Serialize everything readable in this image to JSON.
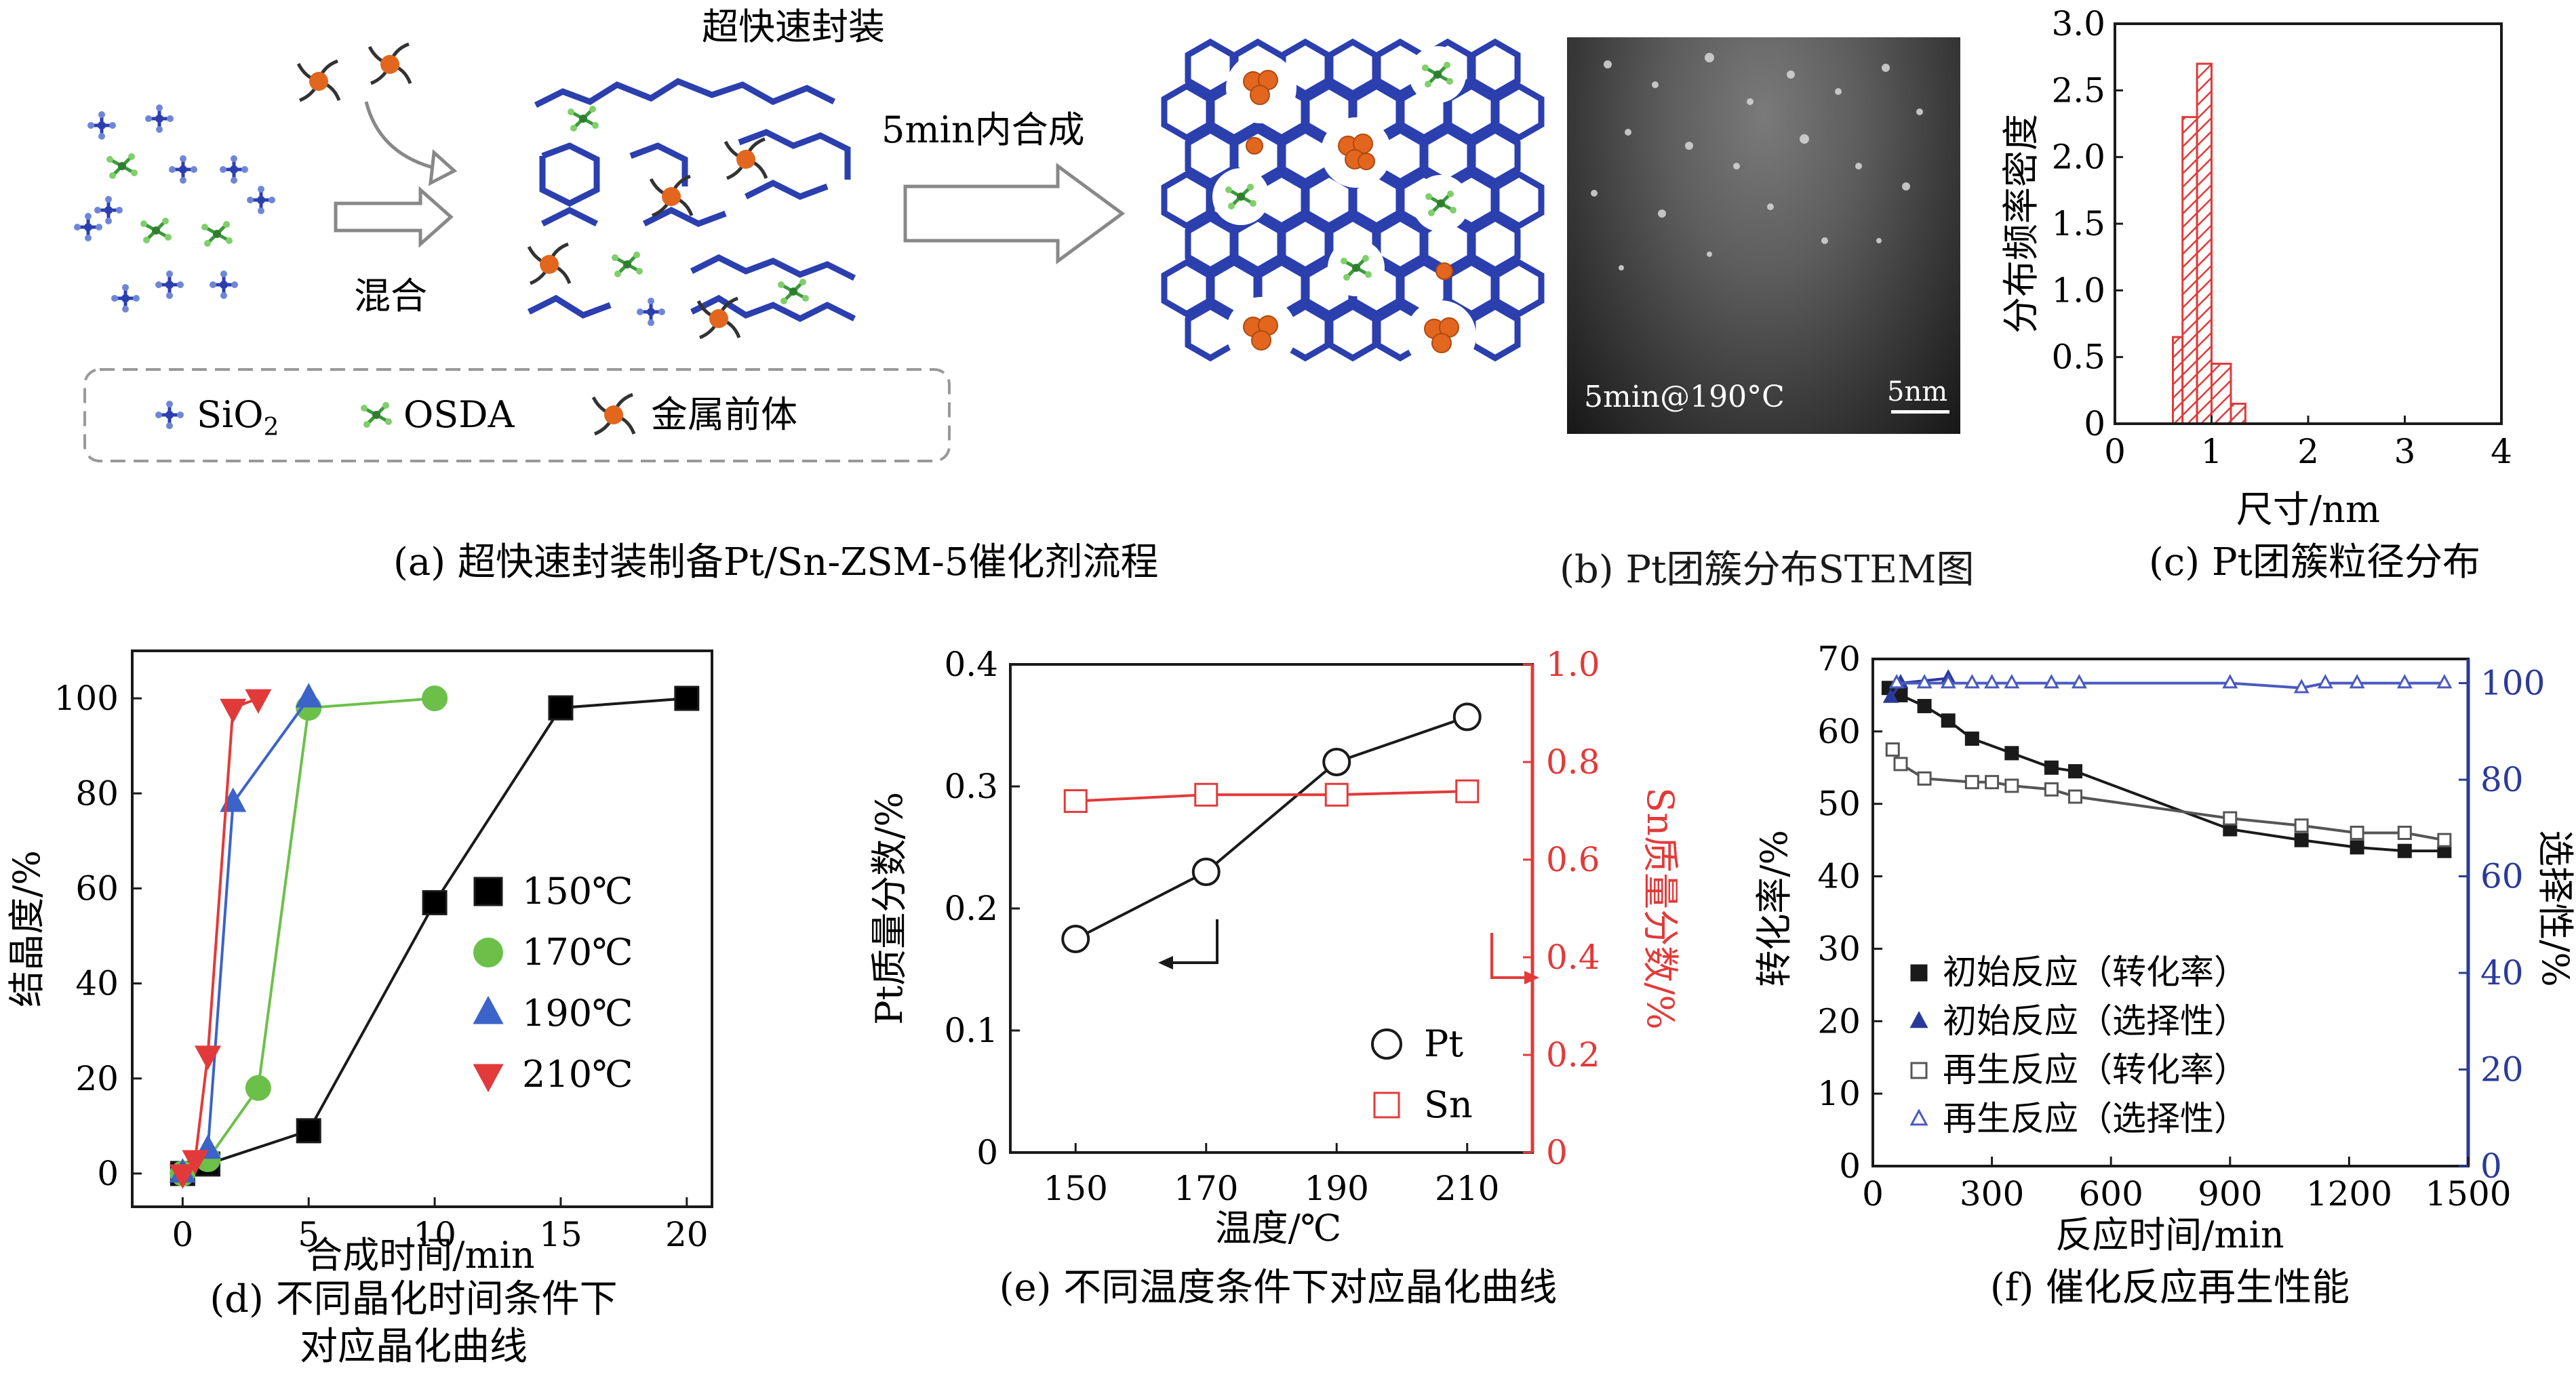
{
  "panel_a": {
    "top_title": "超快速封装",
    "mix_label": "混合",
    "synth_label": "5min内合成",
    "legend": {
      "sio2": "SiO",
      "sio2_sub": "2",
      "osda": "OSDA",
      "metal": "金属前体"
    },
    "caption": "(a) 超快速封装制备Pt/Sn-ZSM-5催化剂流程",
    "colors": {
      "framework": "#2b3fae",
      "osda": "#3a9a3a",
      "metal": "#e2661e"
    }
  },
  "panel_b": {
    "condition": "5min@190°C",
    "scale": "5nm",
    "caption": "(b) Pt团簇分布STEM图"
  },
  "chart_data": [
    {
      "id": "c",
      "type": "bar",
      "caption": "(c) Pt团簇粒径分布",
      "xlabel": "尺寸/nm",
      "ylabel": "分布频率密度",
      "xlim": [
        0,
        4
      ],
      "ylim": [
        0,
        3.0
      ],
      "xticks": [
        "0",
        "1",
        "2",
        "3",
        "4"
      ],
      "yticks": [
        "0",
        "0.5",
        "1.0",
        "1.5",
        "2.0",
        "2.5",
        "3.0"
      ],
      "bars": [
        {
          "x0": 0.6,
          "x1": 0.7,
          "value": 0.65
        },
        {
          "x0": 0.7,
          "x1": 0.85,
          "value": 2.3
        },
        {
          "x0": 0.85,
          "x1": 1.0,
          "value": 2.7
        },
        {
          "x0": 1.0,
          "x1": 1.2,
          "value": 0.45
        },
        {
          "x0": 1.2,
          "x1": 1.35,
          "value": 0.15
        }
      ],
      "color": "#e03a3a"
    },
    {
      "id": "d",
      "type": "line",
      "caption_line1": "(d) 不同晶化时间条件下",
      "caption_line2": "对应晶化曲线",
      "xlabel": "合成时间/min",
      "ylabel": "结晶度/%",
      "xlim": [
        -2,
        21
      ],
      "ylim": [
        -7,
        110
      ],
      "xticks": [
        "0",
        "5",
        "10",
        "15",
        "20"
      ],
      "yticks": [
        "0",
        "20",
        "40",
        "60",
        "80",
        "100"
      ],
      "series": [
        {
          "name": "150℃",
          "marker": "square",
          "color": "#1a1a1a",
          "fill": "#000000",
          "x": [
            0,
            1,
            5,
            10,
            15,
            20
          ],
          "y": [
            0,
            2,
            9,
            57,
            98,
            100
          ]
        },
        {
          "name": "170℃",
          "marker": "circle",
          "color": "#6cc04a",
          "fill": "#6cc04a",
          "x": [
            0,
            1,
            3,
            5,
            10
          ],
          "y": [
            0,
            3,
            18,
            98,
            100
          ]
        },
        {
          "name": "190℃",
          "marker": "triangle-up",
          "color": "#3b63c9",
          "fill": "#3b63c9",
          "x": [
            0,
            1,
            2,
            5
          ],
          "y": [
            0,
            5,
            78,
            100
          ]
        },
        {
          "name": "210℃",
          "marker": "triangle-down",
          "color": "#e23a3a",
          "fill": "#e23a3a",
          "x": [
            0,
            0.5,
            1,
            2,
            3
          ],
          "y": [
            0,
            3,
            25,
            98,
            100
          ]
        }
      ]
    },
    {
      "id": "e",
      "type": "line",
      "caption": "(e) 不同温度条件下对应晶化曲线",
      "xlabel": "温度/℃",
      "ylabel_left": "Pt质量分数/%",
      "ylabel_right": "Sn质量分数/%",
      "xlim": [
        140,
        220
      ],
      "ylim_left": [
        0,
        0.4
      ],
      "ylim_right": [
        0,
        1.0
      ],
      "xticks": [
        "150",
        "170",
        "190",
        "210"
      ],
      "yticks_left": [
        "0",
        "0.1",
        "0.2",
        "0.3",
        "0.4"
      ],
      "yticks_right": [
        "0",
        "0.2",
        "0.4",
        "0.6",
        "0.8",
        "1.0"
      ],
      "series": [
        {
          "name": "Pt",
          "axis": "left",
          "marker": "circle",
          "color": "#1a1a1a",
          "x": [
            150,
            170,
            190,
            210
          ],
          "y": [
            0.175,
            0.23,
            0.32,
            0.357
          ]
        },
        {
          "name": "Sn",
          "axis": "right",
          "marker": "square",
          "color": "#e23a3a",
          "x": [
            150,
            170,
            190,
            210
          ],
          "y": [
            0.72,
            0.733,
            0.733,
            0.74
          ]
        }
      ],
      "right_axis_color": "#e23a3a"
    },
    {
      "id": "f",
      "type": "line",
      "caption": "(f) 催化反应再生性能",
      "xlabel": "反应时间/min",
      "ylabel_left": "转化率/%",
      "ylabel_right": "选择性/%",
      "xlim": [
        0,
        1500
      ],
      "ylim_left": [
        0,
        70
      ],
      "ylim_right": [
        0,
        105
      ],
      "xticks": [
        "0",
        "300",
        "600",
        "900",
        "1200",
        "1500"
      ],
      "yticks_left": [
        "0",
        "10",
        "20",
        "30",
        "40",
        "50",
        "60",
        "70"
      ],
      "yticks_right": [
        "0",
        "20",
        "40",
        "60",
        "80",
        "100"
      ],
      "series": [
        {
          "name": "初始反应（转化率）",
          "axis": "left",
          "marker": "square",
          "filled": true,
          "color": "#1a1a1a",
          "x": [
            40,
            70,
            130,
            190,
            250,
            350,
            450,
            510,
            900,
            1080,
            1220,
            1340,
            1440
          ],
          "y": [
            66,
            65,
            63.5,
            61.5,
            59,
            57,
            55,
            54.5,
            46.5,
            45,
            44,
            43.5,
            43.5
          ]
        },
        {
          "name": "初始反应（选择性）",
          "axis": "right",
          "marker": "triangle-up",
          "filled": true,
          "color": "#2b3a9a",
          "x": [
            45,
            70,
            190
          ],
          "y": [
            97,
            100,
            101
          ]
        },
        {
          "name": "再生反应（转化率）",
          "axis": "left",
          "marker": "square",
          "filled": false,
          "color": "#555555",
          "x": [
            50,
            70,
            130,
            250,
            300,
            350,
            450,
            510,
            900,
            1080,
            1220,
            1340,
            1440
          ],
          "y": [
            57.5,
            55.5,
            53.5,
            53,
            53,
            52.5,
            52,
            51,
            48,
            47,
            46,
            46,
            45
          ]
        },
        {
          "name": "再生反应（选择性）",
          "axis": "right",
          "marker": "triangle-up",
          "filled": false,
          "color": "#4a5ac0",
          "x": [
            60,
            130,
            190,
            250,
            300,
            350,
            450,
            520,
            900,
            1080,
            1140,
            1220,
            1340,
            1440
          ],
          "y": [
            100,
            100,
            100,
            100,
            100,
            100,
            100,
            100,
            100,
            99,
            100,
            100,
            100,
            100
          ]
        }
      ],
      "right_axis_color": "#2b3a9a"
    }
  ]
}
